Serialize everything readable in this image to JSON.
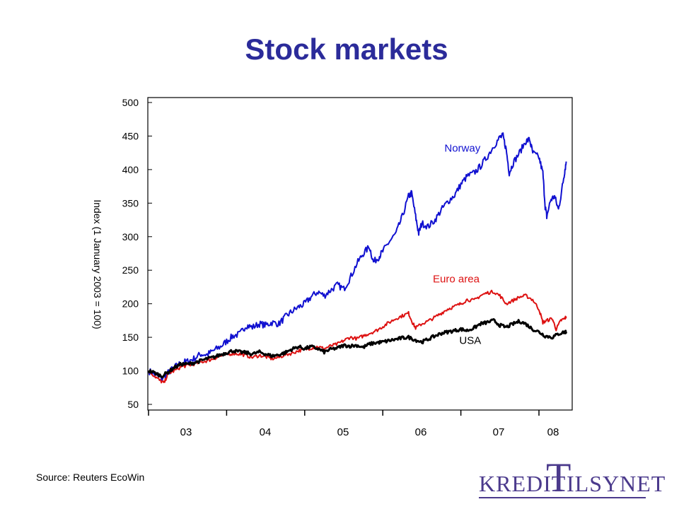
{
  "title": "Stock markets",
  "source": "Source: Reuters EcoWin",
  "logo": {
    "left": "KREDIT",
    "T": "T",
    "right": "ILSYNET"
  },
  "chart_data": {
    "type": "line",
    "title": "Stock markets",
    "ylabel": "Index (1 January 2003 = 100)",
    "xlabel": "",
    "ylim": [
      50,
      500
    ],
    "yticks": [
      50,
      100,
      150,
      200,
      250,
      300,
      350,
      400,
      450,
      500
    ],
    "xticks": [
      "03",
      "04",
      "05",
      "06",
      "07",
      "08"
    ],
    "xlim": [
      2003.0,
      2008.35
    ],
    "grid": false,
    "series": [
      {
        "name": "Norway",
        "color": "#1010d0",
        "label_at": [
          2007.02,
          427
        ],
        "points": [
          [
            2003.0,
            100
          ],
          [
            2003.08,
            95
          ],
          [
            2003.17,
            88
          ],
          [
            2003.25,
            97
          ],
          [
            2003.33,
            105
          ],
          [
            2003.42,
            112
          ],
          [
            2003.5,
            114
          ],
          [
            2003.58,
            118
          ],
          [
            2003.67,
            125
          ],
          [
            2003.75,
            124
          ],
          [
            2003.83,
            130
          ],
          [
            2003.92,
            136
          ],
          [
            2004.0,
            144
          ],
          [
            2004.08,
            152
          ],
          [
            2004.17,
            155
          ],
          [
            2004.25,
            168
          ],
          [
            2004.33,
            165
          ],
          [
            2004.42,
            170
          ],
          [
            2004.5,
            168
          ],
          [
            2004.58,
            172
          ],
          [
            2004.67,
            170
          ],
          [
            2004.75,
            180
          ],
          [
            2004.83,
            188
          ],
          [
            2004.92,
            195
          ],
          [
            2005.0,
            200
          ],
          [
            2005.08,
            210
          ],
          [
            2005.17,
            218
          ],
          [
            2005.25,
            212
          ],
          [
            2005.33,
            220
          ],
          [
            2005.42,
            228
          ],
          [
            2005.5,
            222
          ],
          [
            2005.58,
            238
          ],
          [
            2005.67,
            260
          ],
          [
            2005.75,
            275
          ],
          [
            2005.83,
            285
          ],
          [
            2005.88,
            262
          ],
          [
            2005.95,
            270
          ],
          [
            2006.0,
            278
          ],
          [
            2006.08,
            292
          ],
          [
            2006.17,
            305
          ],
          [
            2006.25,
            330
          ],
          [
            2006.33,
            360
          ],
          [
            2006.37,
            365
          ],
          [
            2006.42,
            330
          ],
          [
            2006.46,
            305
          ],
          [
            2006.5,
            320
          ],
          [
            2006.58,
            315
          ],
          [
            2006.67,
            325
          ],
          [
            2006.75,
            340
          ],
          [
            2006.83,
            352
          ],
          [
            2006.92,
            362
          ],
          [
            2007.0,
            378
          ],
          [
            2007.08,
            390
          ],
          [
            2007.17,
            395
          ],
          [
            2007.25,
            405
          ],
          [
            2007.33,
            418
          ],
          [
            2007.42,
            435
          ],
          [
            2007.5,
            448
          ],
          [
            2007.54,
            450
          ],
          [
            2007.58,
            430
          ],
          [
            2007.62,
            395
          ],
          [
            2007.67,
            410
          ],
          [
            2007.75,
            425
          ],
          [
            2007.83,
            442
          ],
          [
            2007.88,
            445
          ],
          [
            2007.92,
            425
          ],
          [
            2008.0,
            418
          ],
          [
            2008.05,
            395
          ],
          [
            2008.08,
            345
          ],
          [
            2008.1,
            330
          ],
          [
            2008.15,
            355
          ],
          [
            2008.2,
            360
          ],
          [
            2008.25,
            340
          ],
          [
            2008.3,
            375
          ],
          [
            2008.33,
            398
          ],
          [
            2008.35,
            412
          ]
        ]
      },
      {
        "name": "Euro area",
        "color": "#dd1111",
        "label_at": [
          2006.94,
          232
        ],
        "points": [
          [
            2003.0,
            100
          ],
          [
            2003.08,
            92
          ],
          [
            2003.15,
            85
          ],
          [
            2003.2,
            82
          ],
          [
            2003.25,
            96
          ],
          [
            2003.33,
            100
          ],
          [
            2003.42,
            106
          ],
          [
            2003.5,
            108
          ],
          [
            2003.58,
            110
          ],
          [
            2003.67,
            113
          ],
          [
            2003.75,
            115
          ],
          [
            2003.83,
            118
          ],
          [
            2003.92,
            122
          ],
          [
            2004.0,
            124
          ],
          [
            2004.08,
            126
          ],
          [
            2004.17,
            125
          ],
          [
            2004.25,
            123
          ],
          [
            2004.33,
            120
          ],
          [
            2004.42,
            123
          ],
          [
            2004.5,
            121
          ],
          [
            2004.58,
            118
          ],
          [
            2004.67,
            120
          ],
          [
            2004.75,
            124
          ],
          [
            2004.83,
            126
          ],
          [
            2004.92,
            130
          ],
          [
            2005.0,
            132
          ],
          [
            2005.08,
            134
          ],
          [
            2005.17,
            136
          ],
          [
            2005.25,
            133
          ],
          [
            2005.33,
            137
          ],
          [
            2005.42,
            140
          ],
          [
            2005.5,
            145
          ],
          [
            2005.58,
            150
          ],
          [
            2005.67,
            148
          ],
          [
            2005.75,
            152
          ],
          [
            2005.83,
            156
          ],
          [
            2005.92,
            160
          ],
          [
            2006.0,
            166
          ],
          [
            2006.08,
            172
          ],
          [
            2006.17,
            178
          ],
          [
            2006.25,
            182
          ],
          [
            2006.33,
            186
          ],
          [
            2006.38,
            172
          ],
          [
            2006.42,
            164
          ],
          [
            2006.5,
            170
          ],
          [
            2006.58,
            174
          ],
          [
            2006.67,
            180
          ],
          [
            2006.75,
            186
          ],
          [
            2006.83,
            192
          ],
          [
            2006.92,
            196
          ],
          [
            2007.0,
            200
          ],
          [
            2007.08,
            206
          ],
          [
            2007.17,
            205
          ],
          [
            2007.25,
            212
          ],
          [
            2007.33,
            216
          ],
          [
            2007.42,
            218
          ],
          [
            2007.5,
            212
          ],
          [
            2007.58,
            200
          ],
          [
            2007.67,
            205
          ],
          [
            2007.75,
            210
          ],
          [
            2007.83,
            212
          ],
          [
            2007.92,
            206
          ],
          [
            2008.0,
            192
          ],
          [
            2008.05,
            172
          ],
          [
            2008.1,
            175
          ],
          [
            2008.17,
            178
          ],
          [
            2008.22,
            162
          ],
          [
            2008.28,
            175
          ],
          [
            2008.33,
            178
          ],
          [
            2008.35,
            181
          ]
        ]
      },
      {
        "name": "USA",
        "color": "#000000",
        "label_at": [
          2007.12,
          140
        ],
        "points": [
          [
            2003.0,
            100
          ],
          [
            2003.08,
            97
          ],
          [
            2003.17,
            92
          ],
          [
            2003.25,
            98
          ],
          [
            2003.33,
            105
          ],
          [
            2003.42,
            110
          ],
          [
            2003.5,
            110
          ],
          [
            2003.58,
            112
          ],
          [
            2003.67,
            115
          ],
          [
            2003.75,
            118
          ],
          [
            2003.83,
            120
          ],
          [
            2003.92,
            124
          ],
          [
            2004.0,
            127
          ],
          [
            2004.08,
            130
          ],
          [
            2004.17,
            128
          ],
          [
            2004.25,
            127
          ],
          [
            2004.33,
            125
          ],
          [
            2004.42,
            128
          ],
          [
            2004.5,
            125
          ],
          [
            2004.58,
            122
          ],
          [
            2004.67,
            124
          ],
          [
            2004.75,
            127
          ],
          [
            2004.83,
            132
          ],
          [
            2004.92,
            136
          ],
          [
            2005.0,
            133
          ],
          [
            2005.08,
            136
          ],
          [
            2005.17,
            133
          ],
          [
            2005.25,
            128
          ],
          [
            2005.33,
            132
          ],
          [
            2005.42,
            134
          ],
          [
            2005.5,
            138
          ],
          [
            2005.58,
            137
          ],
          [
            2005.67,
            138
          ],
          [
            2005.75,
            135
          ],
          [
            2005.83,
            140
          ],
          [
            2005.92,
            142
          ],
          [
            2006.0,
            143
          ],
          [
            2006.08,
            145
          ],
          [
            2006.17,
            147
          ],
          [
            2006.25,
            149
          ],
          [
            2006.33,
            150
          ],
          [
            2006.42,
            146
          ],
          [
            2006.5,
            143
          ],
          [
            2006.58,
            147
          ],
          [
            2006.67,
            152
          ],
          [
            2006.75,
            156
          ],
          [
            2006.83,
            158
          ],
          [
            2006.92,
            160
          ],
          [
            2007.0,
            162
          ],
          [
            2007.08,
            160
          ],
          [
            2007.17,
            164
          ],
          [
            2007.25,
            170
          ],
          [
            2007.33,
            172
          ],
          [
            2007.42,
            175
          ],
          [
            2007.5,
            168
          ],
          [
            2007.58,
            165
          ],
          [
            2007.67,
            170
          ],
          [
            2007.75,
            174
          ],
          [
            2007.83,
            170
          ],
          [
            2007.92,
            162
          ],
          [
            2008.0,
            158
          ],
          [
            2008.08,
            152
          ],
          [
            2008.17,
            150
          ],
          [
            2008.25,
            155
          ],
          [
            2008.33,
            158
          ],
          [
            2008.35,
            158
          ]
        ]
      }
    ]
  }
}
